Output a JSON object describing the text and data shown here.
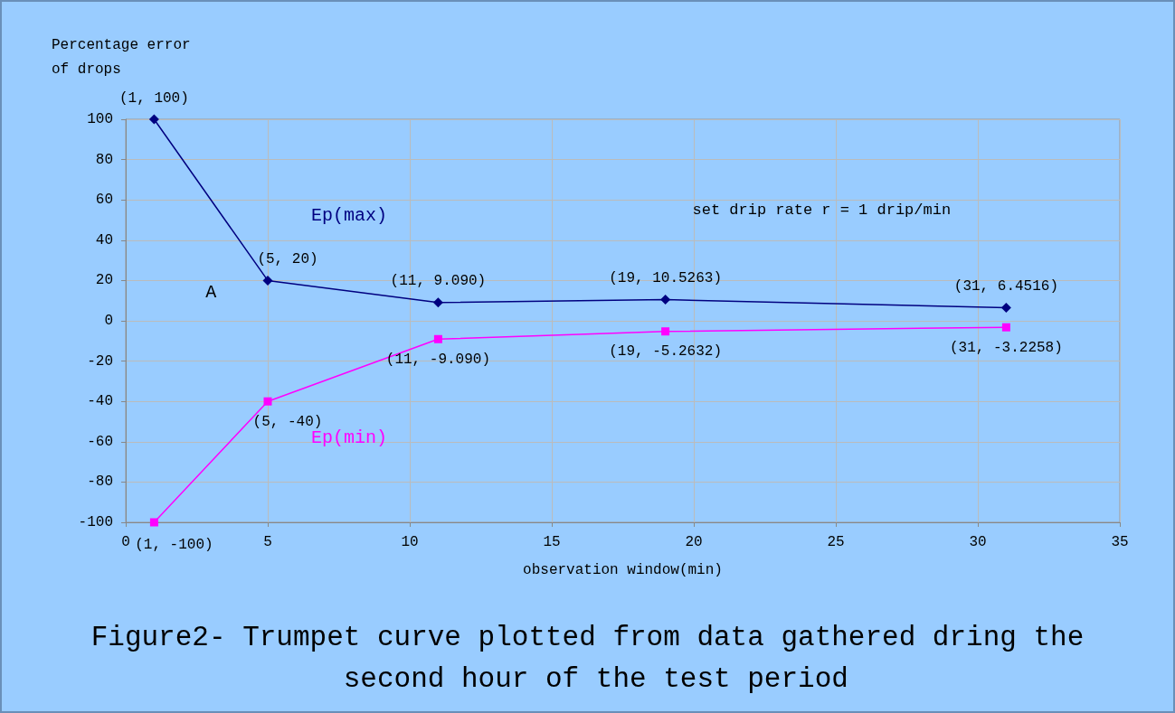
{
  "chart_data": {
    "type": "line",
    "title": "Figure2- Trumpet curve plotted from data gathered dring the second hour of the test period",
    "xlabel": "observation window(min)",
    "ylabel": "Percentage error of drops",
    "x": [
      1,
      5,
      11,
      19,
      31
    ],
    "series": [
      {
        "name": "Ep(max)",
        "color": "#000080",
        "marker": "diamond",
        "values": [
          100,
          20,
          9.09,
          10.5263,
          6.4516
        ],
        "value_labels": [
          "(1, 100)",
          "(5, 20)",
          "(11, 9.090)",
          "(19, 10.5263)",
          "(31, 6.4516)"
        ]
      },
      {
        "name": "Ep(min)",
        "color": "#ff00ff",
        "marker": "square",
        "values": [
          -100,
          -40,
          -9.09,
          -5.2632,
          -3.2258
        ],
        "value_labels": [
          "(1, -100)",
          "(5, -40)",
          "(11, -9.090)",
          "(19, -5.2632)",
          "(31, -3.2258)"
        ]
      }
    ],
    "annotations": [
      "A",
      "set drip rate r = 1 drip/min"
    ],
    "xlim": [
      0,
      35
    ],
    "xticks": [
      0,
      5,
      10,
      15,
      20,
      25,
      30,
      35
    ],
    "ylim": [
      -100,
      100
    ],
    "yticks": [
      -100,
      -80,
      -60,
      -40,
      -20,
      0,
      20,
      40,
      60,
      80,
      100
    ],
    "grid": true,
    "legend": false,
    "line_style": "solid"
  }
}
